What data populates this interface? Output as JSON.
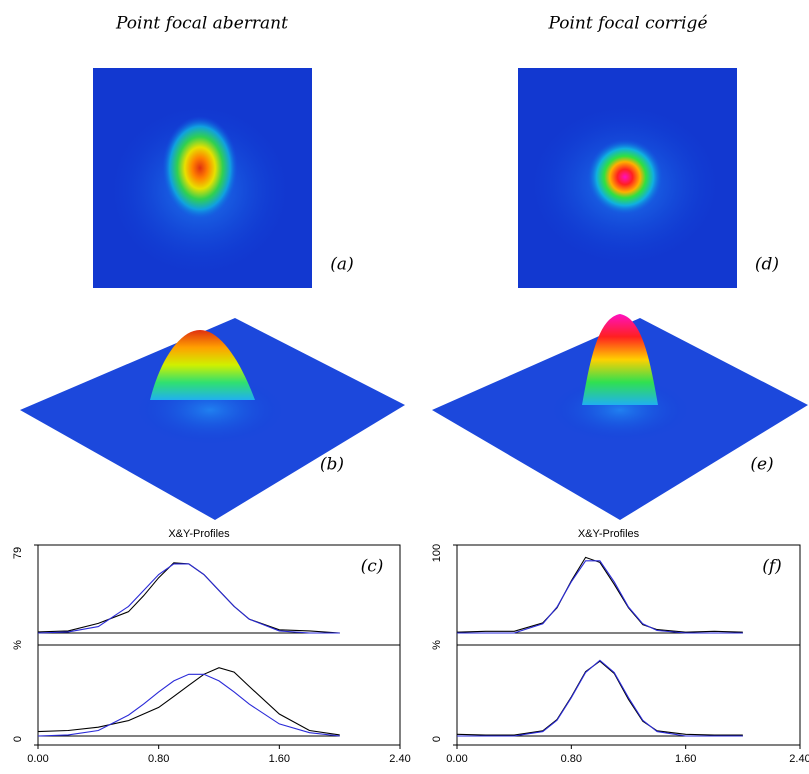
{
  "columns": [
    {
      "title": "Point focal aberrant",
      "image_label": "(a)",
      "surface_label": "(b)"
    },
    {
      "title": "Point focal corrigé",
      "image_label": "(d)",
      "surface_label": "(e)"
    }
  ],
  "chart_data": [
    {
      "type": "line",
      "title": "X&Y-Profiles",
      "ylabel": "%",
      "panel_label": "(c)",
      "xlim": [
        0,
        2.4
      ],
      "xticks": [
        {
          "value": 0,
          "label": "0.00"
        },
        {
          "value": 0.8,
          "label": "0.80"
        },
        {
          "value": 1.6,
          "label": "1.60"
        },
        {
          "value": 2.4,
          "label": "2.40"
        }
      ],
      "ylim": [
        0,
        79
      ],
      "yticks": [
        0,
        79
      ],
      "x": [
        0,
        0.2,
        0.4,
        0.6,
        0.7,
        0.8,
        0.9,
        1.0,
        1.1,
        1.2,
        1.3,
        1.4,
        1.6,
        1.8,
        2.0
      ],
      "panels": [
        {
          "series": [
            {
              "color": "#000000",
              "values": [
                1,
                2,
                9,
                20,
                35,
                52,
                66,
                65,
                55,
                40,
                25,
                13,
                3,
                2,
                0
              ]
            },
            {
              "color": "#2a2ad8",
              "values": [
                0,
                1,
                6,
                25,
                40,
                55,
                65,
                65,
                55,
                40,
                25,
                13,
                2,
                0,
                0
              ]
            }
          ]
        },
        {
          "series": [
            {
              "color": "#000000",
              "values": [
                4,
                5,
                8,
                14,
                20,
                26,
                36,
                46,
                56,
                62,
                58,
                45,
                20,
                5,
                1
              ]
            },
            {
              "color": "#2a2ad8",
              "values": [
                0,
                1,
                5,
                19,
                29,
                40,
                50,
                56,
                56,
                50,
                40,
                29,
                11,
                3,
                0
              ]
            }
          ]
        }
      ]
    },
    {
      "type": "line",
      "title": "X&Y-Profiles",
      "ylabel": "%",
      "panel_label": "(f)",
      "xlim": [
        0,
        2.4
      ],
      "xticks": [
        {
          "value": 0,
          "label": "0.00"
        },
        {
          "value": 0.8,
          "label": "0.80"
        },
        {
          "value": 1.6,
          "label": "1.60"
        },
        {
          "value": 2.4,
          "label": "2.40"
        }
      ],
      "ylim": [
        0,
        100
      ],
      "yticks": [
        0,
        100
      ],
      "x": [
        0,
        0.2,
        0.4,
        0.6,
        0.7,
        0.8,
        0.9,
        1.0,
        1.1,
        1.2,
        1.3,
        1.4,
        1.6,
        1.8,
        2.0
      ],
      "panels": [
        {
          "series": [
            {
              "color": "#000000",
              "values": [
                1,
                2,
                2,
                12,
                30,
                62,
                90,
                84,
                58,
                30,
                10,
                4,
                1,
                2,
                1
              ]
            },
            {
              "color": "#2a2ad8",
              "values": [
                0,
                0,
                0,
                11,
                31,
                61,
                86,
                86,
                61,
                31,
                11,
                3,
                0,
                0,
                0
              ]
            }
          ]
        },
        {
          "series": [
            {
              "color": "#000000",
              "values": [
                2,
                1,
                1,
                6,
                19,
                45,
                74,
                86,
                72,
                42,
                17,
                6,
                2,
                1,
                1
              ]
            },
            {
              "color": "#2a2ad8",
              "values": [
                0,
                0,
                0,
                5,
                18,
                44,
                73,
                87,
                73,
                44,
                18,
                5,
                0,
                0,
                0
              ]
            }
          ]
        }
      ]
    }
  ]
}
